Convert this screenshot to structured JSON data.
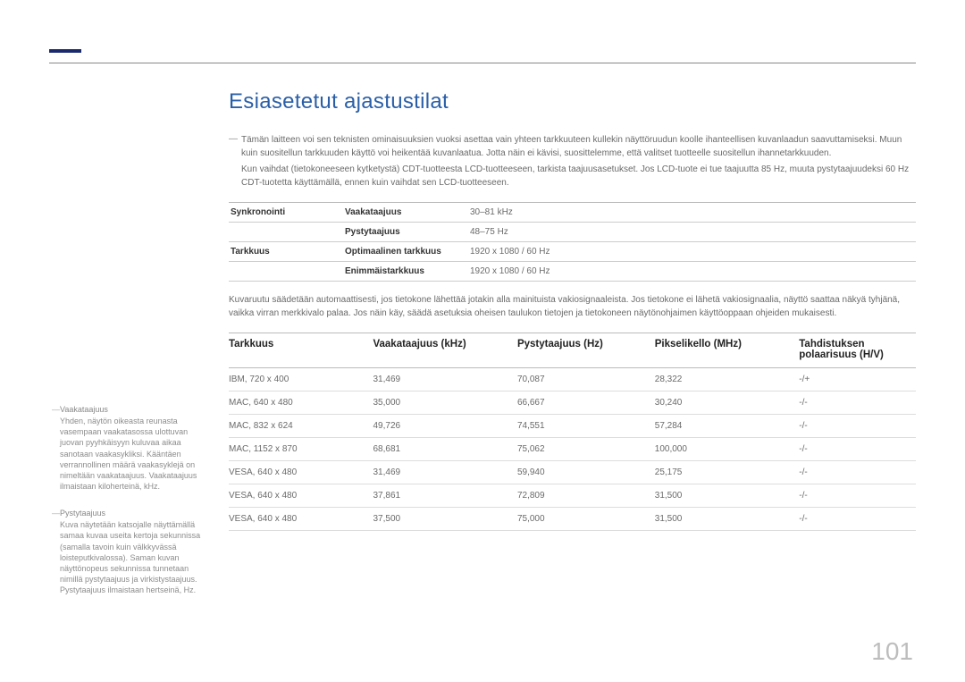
{
  "page_number": "101",
  "title": "Esiasetetut ajastustilat",
  "intro": {
    "p1": "Tämän laitteen voi sen teknisten ominaisuuksien vuoksi asettaa vain yhteen tarkkuuteen kullekin näyttöruudun koolle ihanteellisen kuvanlaadun saavuttamiseksi. Muun kuin suositellun tarkkuuden käyttö voi heikentää kuvanlaatua. Jotta näin ei kävisi, suosittelemme, että valitset tuotteelle suositellun ihannetarkkuuden.",
    "p2": "Kun vaihdat (tietokoneeseen kytketystä) CDT-tuotteesta LCD-tuotteeseen, tarkista taajuusasetukset. Jos LCD-tuote ei tue taajuutta 85 Hz, muuta pystytaajuudeksi 60 Hz CDT-tuotetta käyttämällä, ennen kuin vaihdat sen LCD-tuotteeseen."
  },
  "spec": {
    "rows": [
      {
        "cat": "Synkronointi",
        "label": "Vaakataajuus",
        "value": "30–81 kHz"
      },
      {
        "cat": "",
        "label": "Pystytaajuus",
        "value": "48–75 Hz"
      },
      {
        "cat": "Tarkkuus",
        "label": "Optimaalinen tarkkuus",
        "value": "1920 x 1080 / 60 Hz"
      },
      {
        "cat": "",
        "label": "Enimmäistarkkuus",
        "value": "1920 x 1080 / 60 Hz"
      }
    ]
  },
  "mid_text": "Kuvaruutu säädetään automaattisesti, jos tietokone lähettää jotakin alla mainituista vakiosignaaleista. Jos tietokone ei lähetä vakiosignaalia, näyttö saattaa näkyä tyhjänä, vaikka virran merkkivalo palaa. Jos näin käy, säädä asetuksia oheisen taulukon tietojen ja tietokoneen näytönohjaimen käyttöoppaan ohjeiden mukaisesti.",
  "table": {
    "headers": {
      "res": "Tarkkuus",
      "h": "Vaakataajuus (kHz)",
      "v": "Pystytaajuus (Hz)",
      "p": "Pikselikello (MHz)",
      "pol": "Tahdistuksen polaarisuus (H/V)"
    },
    "rows": [
      {
        "res": "IBM, 720 x 400",
        "h": "31,469",
        "v": "70,087",
        "p": "28,322",
        "pol": "-/+"
      },
      {
        "res": "MAC, 640 x 480",
        "h": "35,000",
        "v": "66,667",
        "p": "30,240",
        "pol": "-/-"
      },
      {
        "res": "MAC, 832 x 624",
        "h": "49,726",
        "v": "74,551",
        "p": "57,284",
        "pol": "-/-"
      },
      {
        "res": "MAC, 1152 x 870",
        "h": "68,681",
        "v": "75,062",
        "p": "100,000",
        "pol": "-/-"
      },
      {
        "res": "VESA, 640 x 480",
        "h": "31,469",
        "v": "59,940",
        "p": "25,175",
        "pol": "-/-"
      },
      {
        "res": "VESA, 640 x 480",
        "h": "37,861",
        "v": "72,809",
        "p": "31,500",
        "pol": "-/-"
      },
      {
        "res": "VESA, 640 x 480",
        "h": "37,500",
        "v": "75,000",
        "p": "31,500",
        "pol": "-/-"
      }
    ]
  },
  "sidebar": {
    "items": [
      {
        "term": "Vaakataajuus",
        "def": "Yhden, näytön oikeasta reunasta vasempaan vaakatasossa ulottuvan juovan pyyhkäisyyn kuluvaa aikaa sanotaan vaakasykliksi. Kääntäen verrannollinen määrä vaakasyklejä on nimeltään vaakataajuus. Vaakataajuus ilmaistaan kiloherteinä, kHz."
      },
      {
        "term": "Pystytaajuus",
        "def": "Kuva näytetään katsojalle näyttämällä samaa kuvaa useita kertoja sekunnissa (samalla tavoin kuin välkkyvässä loisteputkivalossa). Saman kuvan näyttönopeus sekunnissa tunnetaan nimillä pystytaajuus ja virkistystaajuus. Pystytaajuus ilmaistaan hertseinä, Hz."
      }
    ]
  }
}
